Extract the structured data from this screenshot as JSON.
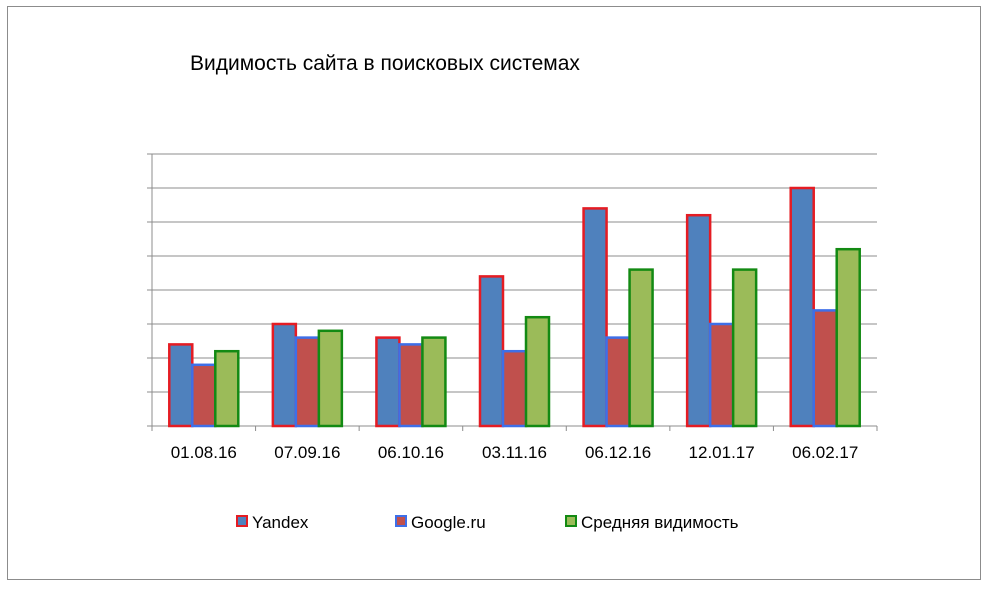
{
  "chart_data": {
    "type": "bar",
    "title": "Видимость сайта в поисковых системах",
    "xlabel": "",
    "ylabel": "",
    "ylim": [
      0,
      8
    ],
    "y_tick_labels_shown": false,
    "grid": true,
    "legend_position": "bottom",
    "categories": [
      "01.08.16",
      "07.09.16",
      "06.10.16",
      "03.11.16",
      "06.12.16",
      "12.01.17",
      "06.02.17"
    ],
    "series": [
      {
        "name": "Yandex",
        "fill": "#4F81BD",
        "stroke": "#E51C23",
        "values": [
          2.4,
          3.0,
          2.6,
          4.4,
          6.4,
          6.2,
          7.0
        ]
      },
      {
        "name": "Google.ru",
        "fill": "#C0504D",
        "stroke": "#3E6FE8",
        "values": [
          1.8,
          2.6,
          2.4,
          2.2,
          2.6,
          3.0,
          3.4
        ]
      },
      {
        "name": "Средняя видимость",
        "fill": "#9BBB59",
        "stroke": "#138A13",
        "values": [
          2.2,
          2.8,
          2.6,
          3.2,
          4.6,
          4.6,
          5.2
        ]
      }
    ]
  }
}
